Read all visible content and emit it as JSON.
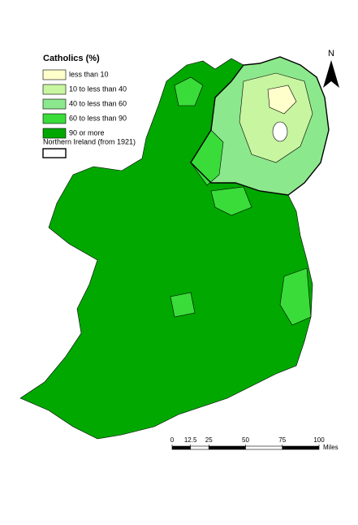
{
  "title": "Catholics (%)",
  "legend": [
    {
      "label": "less than 10",
      "color": "#ffffcc"
    },
    {
      "label": "10 to less than 40",
      "color": "#c8f5a0"
    },
    {
      "label": "40 to less than 60",
      "color": "#8ce88c"
    },
    {
      "label": "60 to less than 90",
      "color": "#3adc3a"
    },
    {
      "label": "90 or more",
      "color": "#00a800"
    }
  ],
  "boundary_label": "Northern Ireland (from 1921)",
  "north_label": "N",
  "scale": {
    "ticks": [
      0,
      12.5,
      25,
      50,
      75,
      100
    ],
    "unit": "Miles"
  }
}
